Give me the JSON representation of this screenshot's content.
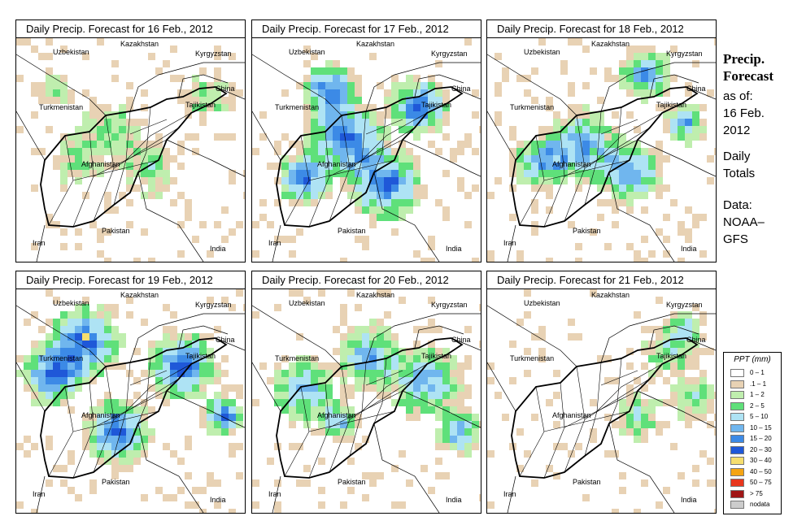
{
  "panels": [
    {
      "title": "Daily Precip. Forecast for  16 Feb., 2012",
      "wet": 0.45
    },
    {
      "title": "Daily Precip. Forecast for  17 Feb., 2012",
      "wet": 1.15
    },
    {
      "title": "Daily Precip. Forecast for  18 Feb., 2012",
      "wet": 0.95
    },
    {
      "title": "Daily Precip. Forecast for  19 Feb., 2012",
      "wet": 1.2
    },
    {
      "title": "Daily Precip. Forecast for  20 Feb., 2012",
      "wet": 0.9
    },
    {
      "title": "Daily Precip. Forecast for  21 Feb., 2012",
      "wet": 0.55
    }
  ],
  "map_labels": {
    "uzbekistan": "Uzbekistan",
    "kazakhstan": "Kazakhstan",
    "kyrgyzstan": "Kyrgyzstan",
    "china": "China",
    "turkmenistan": "Turkmenistan",
    "tajikistan": "Tajikistan",
    "afghanistan": "Afghanistan",
    "iran": "Iran",
    "pakistan": "Pakistan",
    "india": "India"
  },
  "side": {
    "title_line1": "Precip.",
    "title_line2": "Forecast",
    "asof": "as of:",
    "date_line1": "16 Feb.",
    "date_line2": "2012",
    "totals_line1": "Daily",
    "totals_line2": "Totals",
    "data_line1": "Data:",
    "data_line2": "NOAA–",
    "data_line3": "GFS"
  },
  "legend": {
    "title": "PPT (mm)",
    "items": [
      {
        "label": "0 – 1",
        "color": "#ffffff"
      },
      {
        "label": ".1 – 1",
        "color": "#e8d2b4"
      },
      {
        "label": "1 – 2",
        "color": "#bfeeae"
      },
      {
        "label": "2 – 5",
        "color": "#5fe07a"
      },
      {
        "label": "5 – 10",
        "color": "#aee3f4"
      },
      {
        "label": "10 – 15",
        "color": "#70b6ee"
      },
      {
        "label": "15 – 20",
        "color": "#3c8ae6"
      },
      {
        "label": "20 – 30",
        "color": "#1f58d8"
      },
      {
        "label": "30 – 40",
        "color": "#f6de6e"
      },
      {
        "label": "40 – 50",
        "color": "#f5a413"
      },
      {
        "label": "50 – 75",
        "color": "#e8361d"
      },
      {
        "label": "> 75",
        "color": "#a01616"
      },
      {
        "label": "nodata",
        "color": "#cccccc"
      }
    ]
  }
}
